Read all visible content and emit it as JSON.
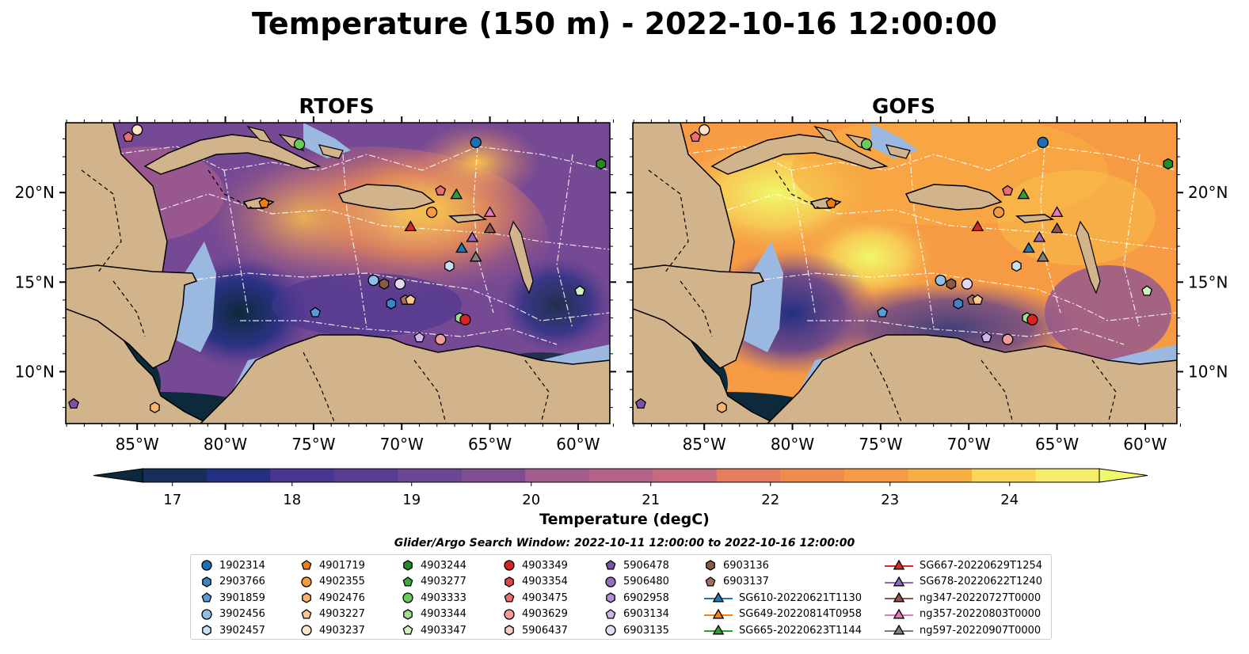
{
  "title": "Temperature (150 m) - 2022-10-16 12:00:00",
  "panels": [
    {
      "title": "RTOFS"
    },
    {
      "title": "GOFS"
    }
  ],
  "axes": {
    "lon_ticks": [
      "85°W",
      "80°W",
      "75°W",
      "70°W",
      "65°W",
      "60°W"
    ],
    "lat_ticks": [
      "20°N",
      "15°N",
      "10°N"
    ]
  },
  "colorbar": {
    "label": "Temperature (degC)",
    "ticks": [
      "17",
      "18",
      "19",
      "20",
      "21",
      "22",
      "23",
      "24"
    ],
    "min": 16.75,
    "max": 24.75,
    "extend": "both",
    "colors": [
      "#0c2a3b",
      "#152f5a",
      "#232f82",
      "#36328f",
      "#47358f",
      "#5a3c93",
      "#6c4593",
      "#7e4d92",
      "#905591",
      "#a25c8e",
      "#b5628a",
      "#c76a7f",
      "#d87472",
      "#e67d5d",
      "#f08b4d",
      "#f69b44",
      "#f9ae42",
      "#f9c24a",
      "#f7d65a",
      "#f6eb6a",
      "#f0f96a"
    ]
  },
  "legend": {
    "title": "Glider/Argo Search Window: 2022-10-11 12:00:00 to 2022-10-16 12:00:00",
    "entries": [
      {
        "label": "1902314",
        "marker": "circle",
        "color": "#1f6fb4"
      },
      {
        "label": "2903766",
        "marker": "hexagon",
        "color": "#3d85c6"
      },
      {
        "label": "3901859",
        "marker": "pentagon",
        "color": "#5a9bd8"
      },
      {
        "label": "3902456",
        "marker": "circle",
        "color": "#8ec0e6"
      },
      {
        "label": "3902457",
        "marker": "hexagon",
        "color": "#c6e0f5"
      },
      {
        "label": "4901719",
        "marker": "pentagon",
        "color": "#f07e12"
      },
      {
        "label": "4902355",
        "marker": "circle",
        "color": "#f79a3e"
      },
      {
        "label": "4902476",
        "marker": "hexagon",
        "color": "#fbb56a"
      },
      {
        "label": "4903227",
        "marker": "pentagon",
        "color": "#fcc993"
      },
      {
        "label": "4903237",
        "marker": "circle",
        "color": "#fde4c6"
      },
      {
        "label": "4903244",
        "marker": "hexagon",
        "color": "#238b23"
      },
      {
        "label": "4903277",
        "marker": "pentagon",
        "color": "#3caa3c"
      },
      {
        "label": "4903333",
        "marker": "circle",
        "color": "#6bcb5a"
      },
      {
        "label": "4903344",
        "marker": "hexagon",
        "color": "#9fe08f"
      },
      {
        "label": "4903347",
        "marker": "pentagon",
        "color": "#ccf3c0"
      },
      {
        "label": "4903349",
        "marker": "circle",
        "color": "#d62424"
      },
      {
        "label": "4903354",
        "marker": "hexagon",
        "color": "#e04848"
      },
      {
        "label": "4903475",
        "marker": "pentagon",
        "color": "#ec6f6f"
      },
      {
        "label": "4903629",
        "marker": "circle",
        "color": "#f59a9a"
      },
      {
        "label": "5906437",
        "marker": "hexagon",
        "color": "#fbc9c9"
      },
      {
        "label": "5906478",
        "marker": "pentagon",
        "color": "#7a52a8"
      },
      {
        "label": "5906480",
        "marker": "circle",
        "color": "#9470c0"
      },
      {
        "label": "6902958",
        "marker": "hexagon",
        "color": "#b292d6"
      },
      {
        "label": "6903134",
        "marker": "pentagon",
        "color": "#cdb5ea"
      },
      {
        "label": "6903135",
        "marker": "circle",
        "color": "#e6d8f7"
      },
      {
        "label": "6903136",
        "marker": "hexagon",
        "color": "#8b5a44"
      },
      {
        "label": "6903137",
        "marker": "pentagon",
        "color": "#a6705a"
      },
      {
        "label": "SG610-20220621T1130",
        "marker": "triangle",
        "color": "#1f77b4"
      },
      {
        "label": "SG649-20220814T0958",
        "marker": "triangle",
        "color": "#ff7f0e"
      },
      {
        "label": "SG665-20220623T1144",
        "marker": "triangle",
        "color": "#2ca02c"
      },
      {
        "label": "SG667-20220629T1254",
        "marker": "triangle",
        "color": "#d62728"
      },
      {
        "label": "SG678-20220622T1240",
        "marker": "triangle",
        "color": "#9467bd"
      },
      {
        "label": "ng347-20220727T0000",
        "marker": "triangle",
        "color": "#8c564b"
      },
      {
        "label": "ng357-20220803T0000",
        "marker": "triangle",
        "color": "#e377c2"
      },
      {
        "label": "ng597-20220907T0000",
        "marker": "triangle",
        "color": "#7f7f7f"
      }
    ]
  },
  "observations": [
    {
      "id": "1902314",
      "lon": -65.8,
      "lat": 22.8
    },
    {
      "id": "4903237",
      "lon": -85.0,
      "lat": 23.5
    },
    {
      "id": "4903475",
      "lon": -85.5,
      "lat": 23.1
    },
    {
      "id": "4903333",
      "lon": -75.8,
      "lat": 22.7
    },
    {
      "id": "4903244",
      "lon": -58.7,
      "lat": 21.6
    },
    {
      "id": "4901719",
      "lon": -77.8,
      "lat": 19.4
    },
    {
      "id": "4903475",
      "lon": -67.8,
      "lat": 20.1
    },
    {
      "id": "SG665-20220623T1144",
      "lon": -66.9,
      "lat": 19.9
    },
    {
      "id": "4902355",
      "lon": -68.3,
      "lat": 18.9
    },
    {
      "id": "ng357-20220803T0000",
      "lon": -65.0,
      "lat": 18.9
    },
    {
      "id": "SG667-20220629T1254",
      "lon": -69.5,
      "lat": 18.1
    },
    {
      "id": "ng347-20220727T0000",
      "lon": -65.0,
      "lat": 18.0
    },
    {
      "id": "SG678-20220622T1240",
      "lon": -66.0,
      "lat": 17.5
    },
    {
      "id": "SG610-20220621T1130",
      "lon": -66.6,
      "lat": 16.9
    },
    {
      "id": "ng597-20220907T0000",
      "lon": -65.8,
      "lat": 16.4
    },
    {
      "id": "3902457",
      "lon": -67.3,
      "lat": 15.9
    },
    {
      "id": "3902456",
      "lon": -71.6,
      "lat": 15.1
    },
    {
      "id": "6903136",
      "lon": -71.0,
      "lat": 14.9
    },
    {
      "id": "6903135",
      "lon": -70.1,
      "lat": 14.9
    },
    {
      "id": "4903347",
      "lon": -59.9,
      "lat": 14.5
    },
    {
      "id": "6903137",
      "lon": -69.8,
      "lat": 14.0
    },
    {
      "id": "4903227",
      "lon": -69.5,
      "lat": 14.0
    },
    {
      "id": "2903766",
      "lon": -70.6,
      "lat": 13.8
    },
    {
      "id": "3901859",
      "lon": -74.9,
      "lat": 13.3
    },
    {
      "id": "4903344",
      "lon": -66.7,
      "lat": 13.0
    },
    {
      "id": "4903349",
      "lon": -66.4,
      "lat": 12.9
    },
    {
      "id": "6903134",
      "lon": -69.0,
      "lat": 11.9
    },
    {
      "id": "4903629",
      "lon": -67.8,
      "lat": 11.8
    },
    {
      "id": "5906478",
      "lon": -88.6,
      "lat": 8.2
    },
    {
      "id": "4902476",
      "lon": -84.0,
      "lat": 8.0
    }
  ]
}
